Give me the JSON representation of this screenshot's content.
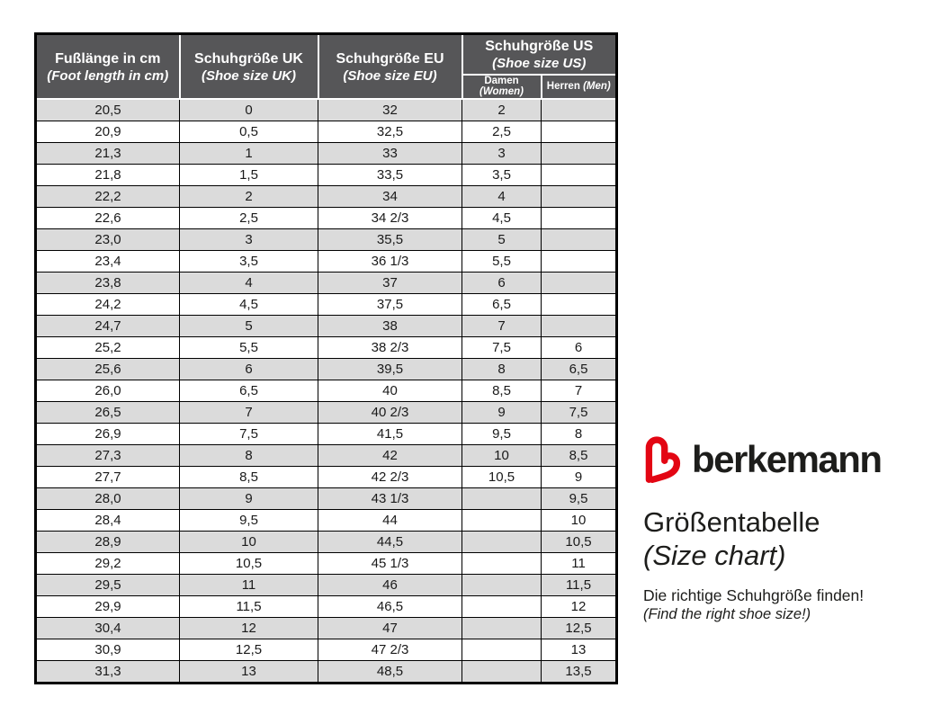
{
  "colors": {
    "header_bg": "#565658",
    "header_text": "#ffffff",
    "row_alt_bg": "#dbdbdb",
    "row_bg": "#ffffff",
    "border": "#000000",
    "brand_red": "#e30613",
    "text": "#1d1d1b"
  },
  "table": {
    "columns": [
      {
        "title": "Fußlänge in cm",
        "subtitle": "(Foot length in cm)"
      },
      {
        "title": "Schuhgröße UK",
        "subtitle": "(Shoe size UK)"
      },
      {
        "title": "Schuhgröße EU",
        "subtitle": "(Shoe size EU)"
      },
      {
        "title": "Schuhgröße US",
        "subtitle": "(Shoe size US)",
        "subcolumns": [
          {
            "label": "Damen",
            "label_italic": "(Women)"
          },
          {
            "label": "Herren",
            "label_italic": "(Men)"
          }
        ]
      }
    ],
    "rows": [
      [
        "20,5",
        "0",
        "32",
        "2",
        ""
      ],
      [
        "20,9",
        "0,5",
        "32,5",
        "2,5",
        ""
      ],
      [
        "21,3",
        "1",
        "33",
        "3",
        ""
      ],
      [
        "21,8",
        "1,5",
        "33,5",
        "3,5",
        ""
      ],
      [
        "22,2",
        "2",
        "34",
        "4",
        ""
      ],
      [
        "22,6",
        "2,5",
        "34 2/3",
        "4,5",
        ""
      ],
      [
        "23,0",
        "3",
        "35,5",
        "5",
        ""
      ],
      [
        "23,4",
        "3,5",
        "36 1/3",
        "5,5",
        ""
      ],
      [
        "23,8",
        "4",
        "37",
        "6",
        ""
      ],
      [
        "24,2",
        "4,5",
        "37,5",
        "6,5",
        ""
      ],
      [
        "24,7",
        "5",
        "38",
        "7",
        ""
      ],
      [
        "25,2",
        "5,5",
        "38 2/3",
        "7,5",
        "6"
      ],
      [
        "25,6",
        "6",
        "39,5",
        "8",
        "6,5"
      ],
      [
        "26,0",
        "6,5",
        "40",
        "8,5",
        "7"
      ],
      [
        "26,5",
        "7",
        "40 2/3",
        "9",
        "7,5"
      ],
      [
        "26,9",
        "7,5",
        "41,5",
        "9,5",
        "8"
      ],
      [
        "27,3",
        "8",
        "42",
        "10",
        "8,5"
      ],
      [
        "27,7",
        "8,5",
        "42 2/3",
        "10,5",
        "9"
      ],
      [
        "28,0",
        "9",
        "43 1/3",
        "",
        "9,5"
      ],
      [
        "28,4",
        "9,5",
        "44",
        "",
        "10"
      ],
      [
        "28,9",
        "10",
        "44,5",
        "",
        "10,5"
      ],
      [
        "29,2",
        "10,5",
        "45 1/3",
        "",
        "11"
      ],
      [
        "29,5",
        "11",
        "46",
        "",
        "11,5"
      ],
      [
        "29,9",
        "11,5",
        "46,5",
        "",
        "12"
      ],
      [
        "30,4",
        "12",
        "47",
        "",
        "12,5"
      ],
      [
        "30,9",
        "12,5",
        "47 2/3",
        "",
        "13"
      ],
      [
        "31,3",
        "13",
        "48,5",
        "",
        "13,5"
      ]
    ]
  },
  "branding": {
    "brand_name": "berkemann",
    "logo_icon": "berkemann-heart-b-logo",
    "title_de": "Größentabelle",
    "title_en": "(Size chart)",
    "tagline_de": "Die richtige Schuhgröße finden!",
    "tagline_en": "(Find the right shoe size!)"
  }
}
